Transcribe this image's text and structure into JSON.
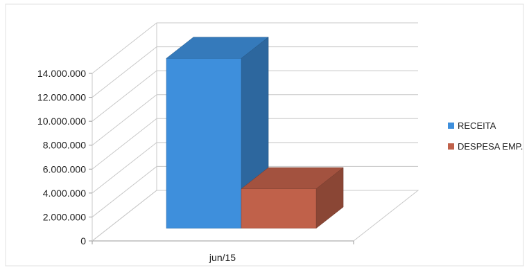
{
  "chart_data": {
    "type": "bar",
    "title": "",
    "xlabel": "",
    "ylabel": "",
    "categories": [
      "jun/15"
    ],
    "series": [
      {
        "name": "RECEITA",
        "values": [
          14200000
        ],
        "color": "#3e8fdc"
      },
      {
        "name": "DESPESA EMP.",
        "values": [
          3300000
        ],
        "color": "#c0614a"
      }
    ],
    "ylim": [
      0,
      14000000
    ],
    "yticks": [
      0,
      2000000,
      4000000,
      6000000,
      8000000,
      10000000,
      12000000,
      14000000
    ],
    "ytick_labels": [
      "0",
      "2.000.000",
      "4.000.000",
      "6.000.000",
      "8.000.000",
      "10.000.000",
      "12.000.000",
      "14.000.000"
    ],
    "grid": true,
    "legend_position": "right",
    "three_d": true
  }
}
